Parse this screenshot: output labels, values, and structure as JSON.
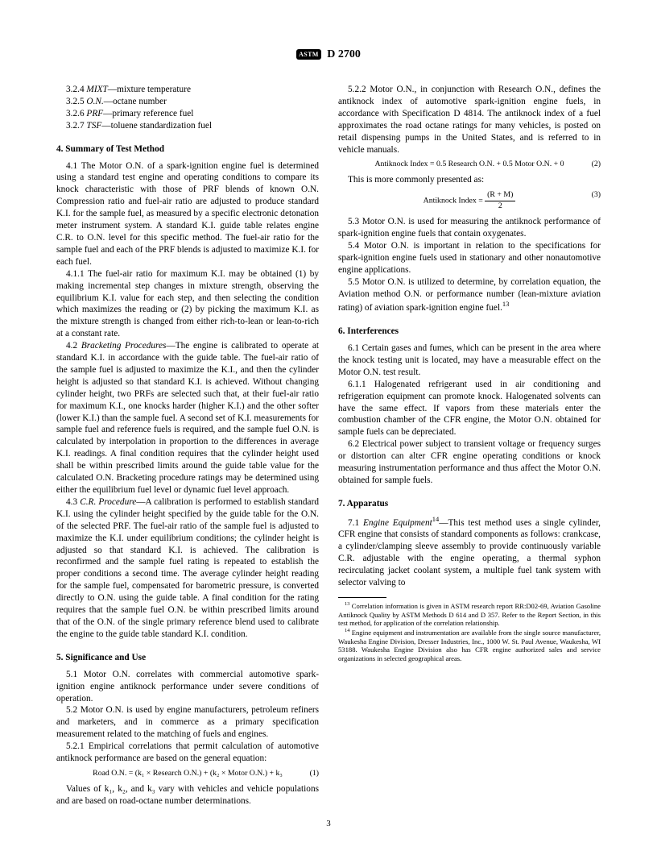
{
  "header": {
    "logo": "ASTM",
    "designation": "D 2700"
  },
  "defs": {
    "d1": {
      "num": "3.2.4",
      "term": "MIXT",
      "txt": "—mixture temperature"
    },
    "d2": {
      "num": "3.2.5",
      "term": "O.N.",
      "txt": "—octane number"
    },
    "d3": {
      "num": "3.2.6",
      "term": "PRF",
      "txt": "—primary reference fuel"
    },
    "d4": {
      "num": "3.2.7",
      "term": "TSF",
      "txt": "—toluene standardization fuel"
    }
  },
  "s4": {
    "title": "4.  Summary of Test Method",
    "p41": "4.1 The Motor O.N. of a spark-ignition engine fuel is determined using a standard test engine and operating conditions to compare its knock characteristic with those of PRF blends of known O.N. Compression ratio and fuel-air ratio are adjusted to produce standard K.I. for the sample fuel, as measured by a specific electronic detonation meter instrument system. A standard K.I. guide table relates engine C.R. to O.N. level for this specific method. The fuel-air ratio for the sample fuel and each of the PRF blends is adjusted to maximize K.I. for each fuel.",
    "p411": "4.1.1 The fuel-air ratio for maximum K.I. may be obtained (1) by making incremental step changes in mixture strength, observing the equilibrium K.I. value for each step, and then selecting the condition which maximizes the reading or (2) by picking the maximum K.I. as the mixture strength is changed from either rich-to-lean or lean-to-rich at a constant rate.",
    "p42a": "4.2 ",
    "p42b": "Bracketing Procedures",
    "p42c": "—The engine is calibrated to operate at standard K.I. in accordance with the guide table. The fuel-air ratio of the sample fuel is adjusted to maximize the K.I., and then the cylinder height is adjusted so that standard K.I. is achieved. Without changing cylinder height, two PRFs are selected such that, at their fuel-air ratio for maximum K.I., one knocks harder (higher K.I.) and the other softer (lower K.I.) than the sample fuel. A second set of K.I. measurements for sample fuel and reference fuels is required, and the sample fuel O.N. is calculated by interpolation in proportion to the differences in average K.I. readings. A final condition requires that the cylinder height used shall be within prescribed limits around the guide table value for the calculated O.N. Bracketing procedure ratings may be determined using either the equilibrium fuel level or dynamic fuel level approach.",
    "p43a": "4.3 ",
    "p43b": "C.R. Procedure",
    "p43c": "—A calibration is performed to establish standard K.I. using the cylinder height specified by the guide table for the O.N. of the selected PRF. The fuel-air ratio of the sample fuel is adjusted to maximize the K.I. under equilibrium conditions; the cylinder height is adjusted so that standard K.I. is achieved. The calibration is reconfirmed and the sample fuel rating is repeated to establish the proper conditions a second time. The average cylinder height reading for the sample fuel, compensated for barometric pressure, is converted directly to O.N. using the guide table. A final condition for the rating requires that the sample fuel O.N. be within prescribed limits around that of the O.N. of the single primary reference blend used to calibrate the engine to the guide table standard K.I. condition."
  },
  "s5": {
    "title": "5.  Significance and Use",
    "p51": "5.1 Motor O.N. correlates with commercial automotive spark-ignition engine antiknock performance under severe conditions of operation.",
    "p52": "5.2 Motor O.N. is used by engine manufacturers, petroleum refiners and marketers, and in commerce as a primary specification measurement related to the matching of fuels and engines.",
    "p521": "5.2.1 Empirical correlations that permit calculation of automotive antiknock performance are based on the general equation:",
    "eq1": "Road O.N. = (k₁ × Research O.N.) + (k₂ × Motor O.N.) + k₃",
    "eq1n": "(1)",
    "p521b": "Values of k₁, k₂, and k₃ vary with vehicles and vehicle populations and are based on road-octane number determinations.",
    "p522": "5.2.2 Motor O.N., in conjunction with Research O.N., defines the antiknock index of automotive spark-ignition engine fuels, in accordance with Specification D 4814. The antiknock index of a fuel approximates the road octane ratings for many vehicles, is posted on retail dispensing pumps in the United States, and is referred to in vehicle manuals.",
    "eq2": "Antiknock Index = 0.5 Research O.N. + 0.5 Motor O.N. + 0",
    "eq2n": "(2)",
    "p522b": "This is more commonly presented as:",
    "eq3a": "Antiknock Index = ",
    "eq3num": "(R + M)",
    "eq3den": "2",
    "eq3n": "(3)",
    "p53": "5.3 Motor O.N. is used for measuring the antiknock performance of spark-ignition engine fuels that contain oxygenates.",
    "p54": "5.4 Motor O.N. is important in relation to the specifications for spark-ignition engine fuels used in stationary and other nonautomotive engine applications.",
    "p55a": "5.5 Motor O.N. is utilized to determine, by correlation equation, the Aviation method O.N. or performance number (lean-mixture aviation rating) of aviation spark-ignition engine fuel.",
    "p55sup": "13"
  },
  "s6": {
    "title": "6.  Interferences",
    "p61": "6.1 Certain gases and fumes, which can be present in the area where the knock testing unit is located, may have a measurable effect on the Motor O.N. test result.",
    "p611": "6.1.1 Halogenated refrigerant used in air conditioning and refrigeration equipment can promote knock. Halogenated solvents can have the same effect. If vapors from these materials enter the combustion chamber of the CFR engine, the Motor O.N. obtained for sample fuels can be depreciated.",
    "p62": "6.2 Electrical power subject to transient voltage or frequency surges or distortion can alter CFR engine operating conditions or knock measuring instrumentation performance and thus affect the Motor O.N. obtained for sample fuels."
  },
  "s7": {
    "title": "7.  Apparatus",
    "p71a": "7.1 ",
    "p71b": "Engine Equipment",
    "p71sup": "14",
    "p71c": "—This test method uses a single cylinder, CFR engine that consists of standard components as follows: crankcase, a cylinder/clamping sleeve assembly to provide continuously variable C.R. adjustable with the engine operating, a thermal syphon recirculating jacket coolant system, a multiple fuel tank system with selector valving to"
  },
  "footnotes": {
    "f13sup": "13",
    "f13": " Correlation information is given in ASTM research report RR:D02-69, Aviation Gasoline Antiknock Quality by ASTM Methods D 614 and D 357. Refer to the Report Section, in this test method, for application of the correlation relationship.",
    "f14sup": "14",
    "f14": " Engine equipment and instrumentation are available from the single source manufacturer, Waukesha Engine Division, Dresser Industries, Inc., 1000 W. St. Paul Avenue, Waukesha, WI 53188. Waukesha Engine Division also has CFR engine authorized sales and service organizations in selected geographical areas."
  },
  "pageNumber": "3"
}
